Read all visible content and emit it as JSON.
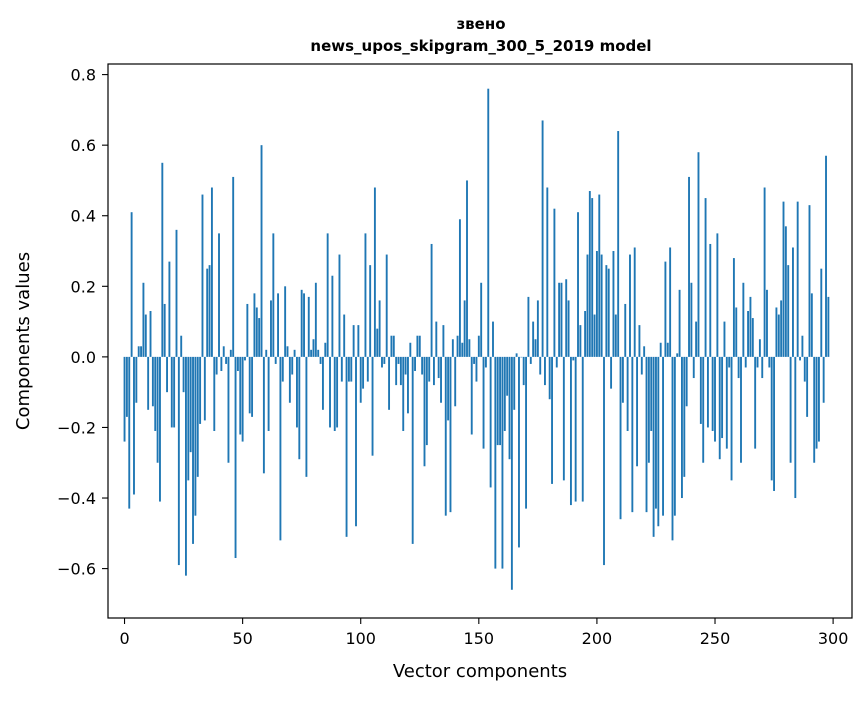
{
  "chart_data": {
    "type": "bar",
    "title": {
      "line1": "звено",
      "line2": "news_upos_skipgram_300_5_2019 model"
    },
    "xlabel": "Vector components",
    "ylabel": "Components values",
    "xlim": [
      -7,
      308
    ],
    "ylim": [
      -0.74,
      0.83
    ],
    "x_ticks": [
      0,
      50,
      100,
      150,
      200,
      250,
      300
    ],
    "y_ticks": [
      -0.6,
      -0.4,
      -0.2,
      0.0,
      0.2,
      0.4,
      0.6,
      0.8
    ],
    "y_tick_labels": [
      "−0.6",
      "−0.4",
      "−0.2",
      "0.0",
      "0.2",
      "0.4",
      "0.6",
      "0.8"
    ],
    "bar_color": "#1f77b4",
    "grid": false,
    "values": [
      -0.24,
      -0.17,
      -0.43,
      0.41,
      -0.39,
      -0.13,
      0.03,
      0.03,
      0.21,
      0.12,
      -0.15,
      0.13,
      -0.14,
      -0.21,
      -0.3,
      -0.41,
      0.55,
      0.15,
      -0.1,
      0.27,
      -0.2,
      -0.2,
      0.36,
      -0.59,
      0.06,
      -0.1,
      -0.62,
      -0.35,
      -0.27,
      -0.53,
      -0.45,
      -0.34,
      -0.19,
      0.46,
      -0.18,
      0.25,
      0.26,
      0.48,
      -0.21,
      -0.05,
      0.35,
      -0.04,
      0.03,
      -0.02,
      -0.3,
      0.02,
      0.51,
      -0.57,
      -0.04,
      -0.22,
      -0.24,
      -0.01,
      0.15,
      -0.16,
      -0.17,
      0.18,
      0.14,
      0.11,
      0.6,
      -0.33,
      0.02,
      -0.21,
      0.16,
      0.35,
      -0.02,
      0.18,
      -0.52,
      -0.07,
      0.2,
      0.03,
      -0.13,
      -0.05,
      0.02,
      -0.2,
      -0.29,
      0.19,
      0.18,
      -0.34,
      0.17,
      0.02,
      0.05,
      0.21,
      0.02,
      -0.02,
      -0.15,
      0.04,
      0.35,
      -0.2,
      0.23,
      -0.21,
      -0.2,
      0.29,
      -0.07,
      0.12,
      -0.51,
      -0.07,
      -0.07,
      0.09,
      -0.48,
      0.09,
      -0.13,
      -0.09,
      0.35,
      -0.07,
      0.26,
      -0.28,
      0.48,
      0.08,
      0.16,
      -0.03,
      -0.02,
      0.29,
      -0.15,
      0.06,
      0.06,
      -0.08,
      -0.02,
      -0.08,
      -0.21,
      -0.05,
      -0.16,
      0.04,
      -0.53,
      -0.04,
      0.06,
      0.06,
      -0.05,
      -0.31,
      -0.25,
      -0.07,
      0.32,
      -0.08,
      0.1,
      -0.06,
      -0.13,
      0.09,
      -0.45,
      -0.18,
      -0.44,
      0.05,
      -0.14,
      0.06,
      0.39,
      0.04,
      0.16,
      0.5,
      0.05,
      -0.22,
      -0.02,
      -0.07,
      0.06,
      0.21,
      -0.26,
      -0.03,
      0.76,
      -0.37,
      0.1,
      -0.6,
      -0.25,
      -0.25,
      -0.6,
      -0.21,
      -0.11,
      -0.29,
      -0.66,
      -0.15,
      0.01,
      -0.54,
      0.0,
      -0.08,
      -0.43,
      0.17,
      -0.02,
      0.1,
      0.05,
      0.16,
      -0.05,
      0.67,
      -0.08,
      0.48,
      -0.12,
      -0.36,
      0.42,
      -0.03,
      0.21,
      0.21,
      -0.35,
      0.22,
      0.16,
      -0.42,
      -0.01,
      -0.41,
      0.41,
      0.09,
      -0.41,
      0.13,
      0.29,
      0.47,
      0.45,
      0.12,
      0.3,
      0.46,
      0.29,
      -0.59,
      0.26,
      0.25,
      -0.09,
      0.3,
      0.12,
      0.64,
      -0.46,
      -0.13,
      0.15,
      -0.21,
      0.29,
      -0.44,
      0.31,
      -0.31,
      0.09,
      -0.05,
      0.03,
      -0.44,
      -0.3,
      -0.21,
      -0.51,
      -0.43,
      -0.48,
      0.04,
      -0.45,
      0.27,
      0.04,
      0.31,
      -0.52,
      -0.45,
      0.01,
      0.19,
      -0.4,
      -0.34,
      -0.14,
      0.51,
      0.21,
      -0.06,
      0.1,
      0.58,
      -0.19,
      -0.3,
      0.45,
      -0.2,
      0.32,
      -0.21,
      -0.24,
      0.35,
      -0.29,
      -0.23,
      0.1,
      -0.26,
      -0.03,
      -0.35,
      0.28,
      0.14,
      -0.06,
      -0.3,
      0.21,
      -0.03,
      0.13,
      0.17,
      0.11,
      -0.26,
      -0.03,
      0.05,
      -0.06,
      0.48,
      0.19,
      -0.03,
      -0.35,
      -0.38,
      0.14,
      0.12,
      0.16,
      0.44,
      0.37,
      0.26,
      -0.3,
      0.31,
      -0.4,
      0.44,
      -0.01,
      0.06,
      -0.07,
      -0.17,
      0.43,
      0.18,
      -0.3,
      -0.26,
      -0.24,
      0.25,
      -0.13,
      0.57,
      0.17
    ]
  }
}
